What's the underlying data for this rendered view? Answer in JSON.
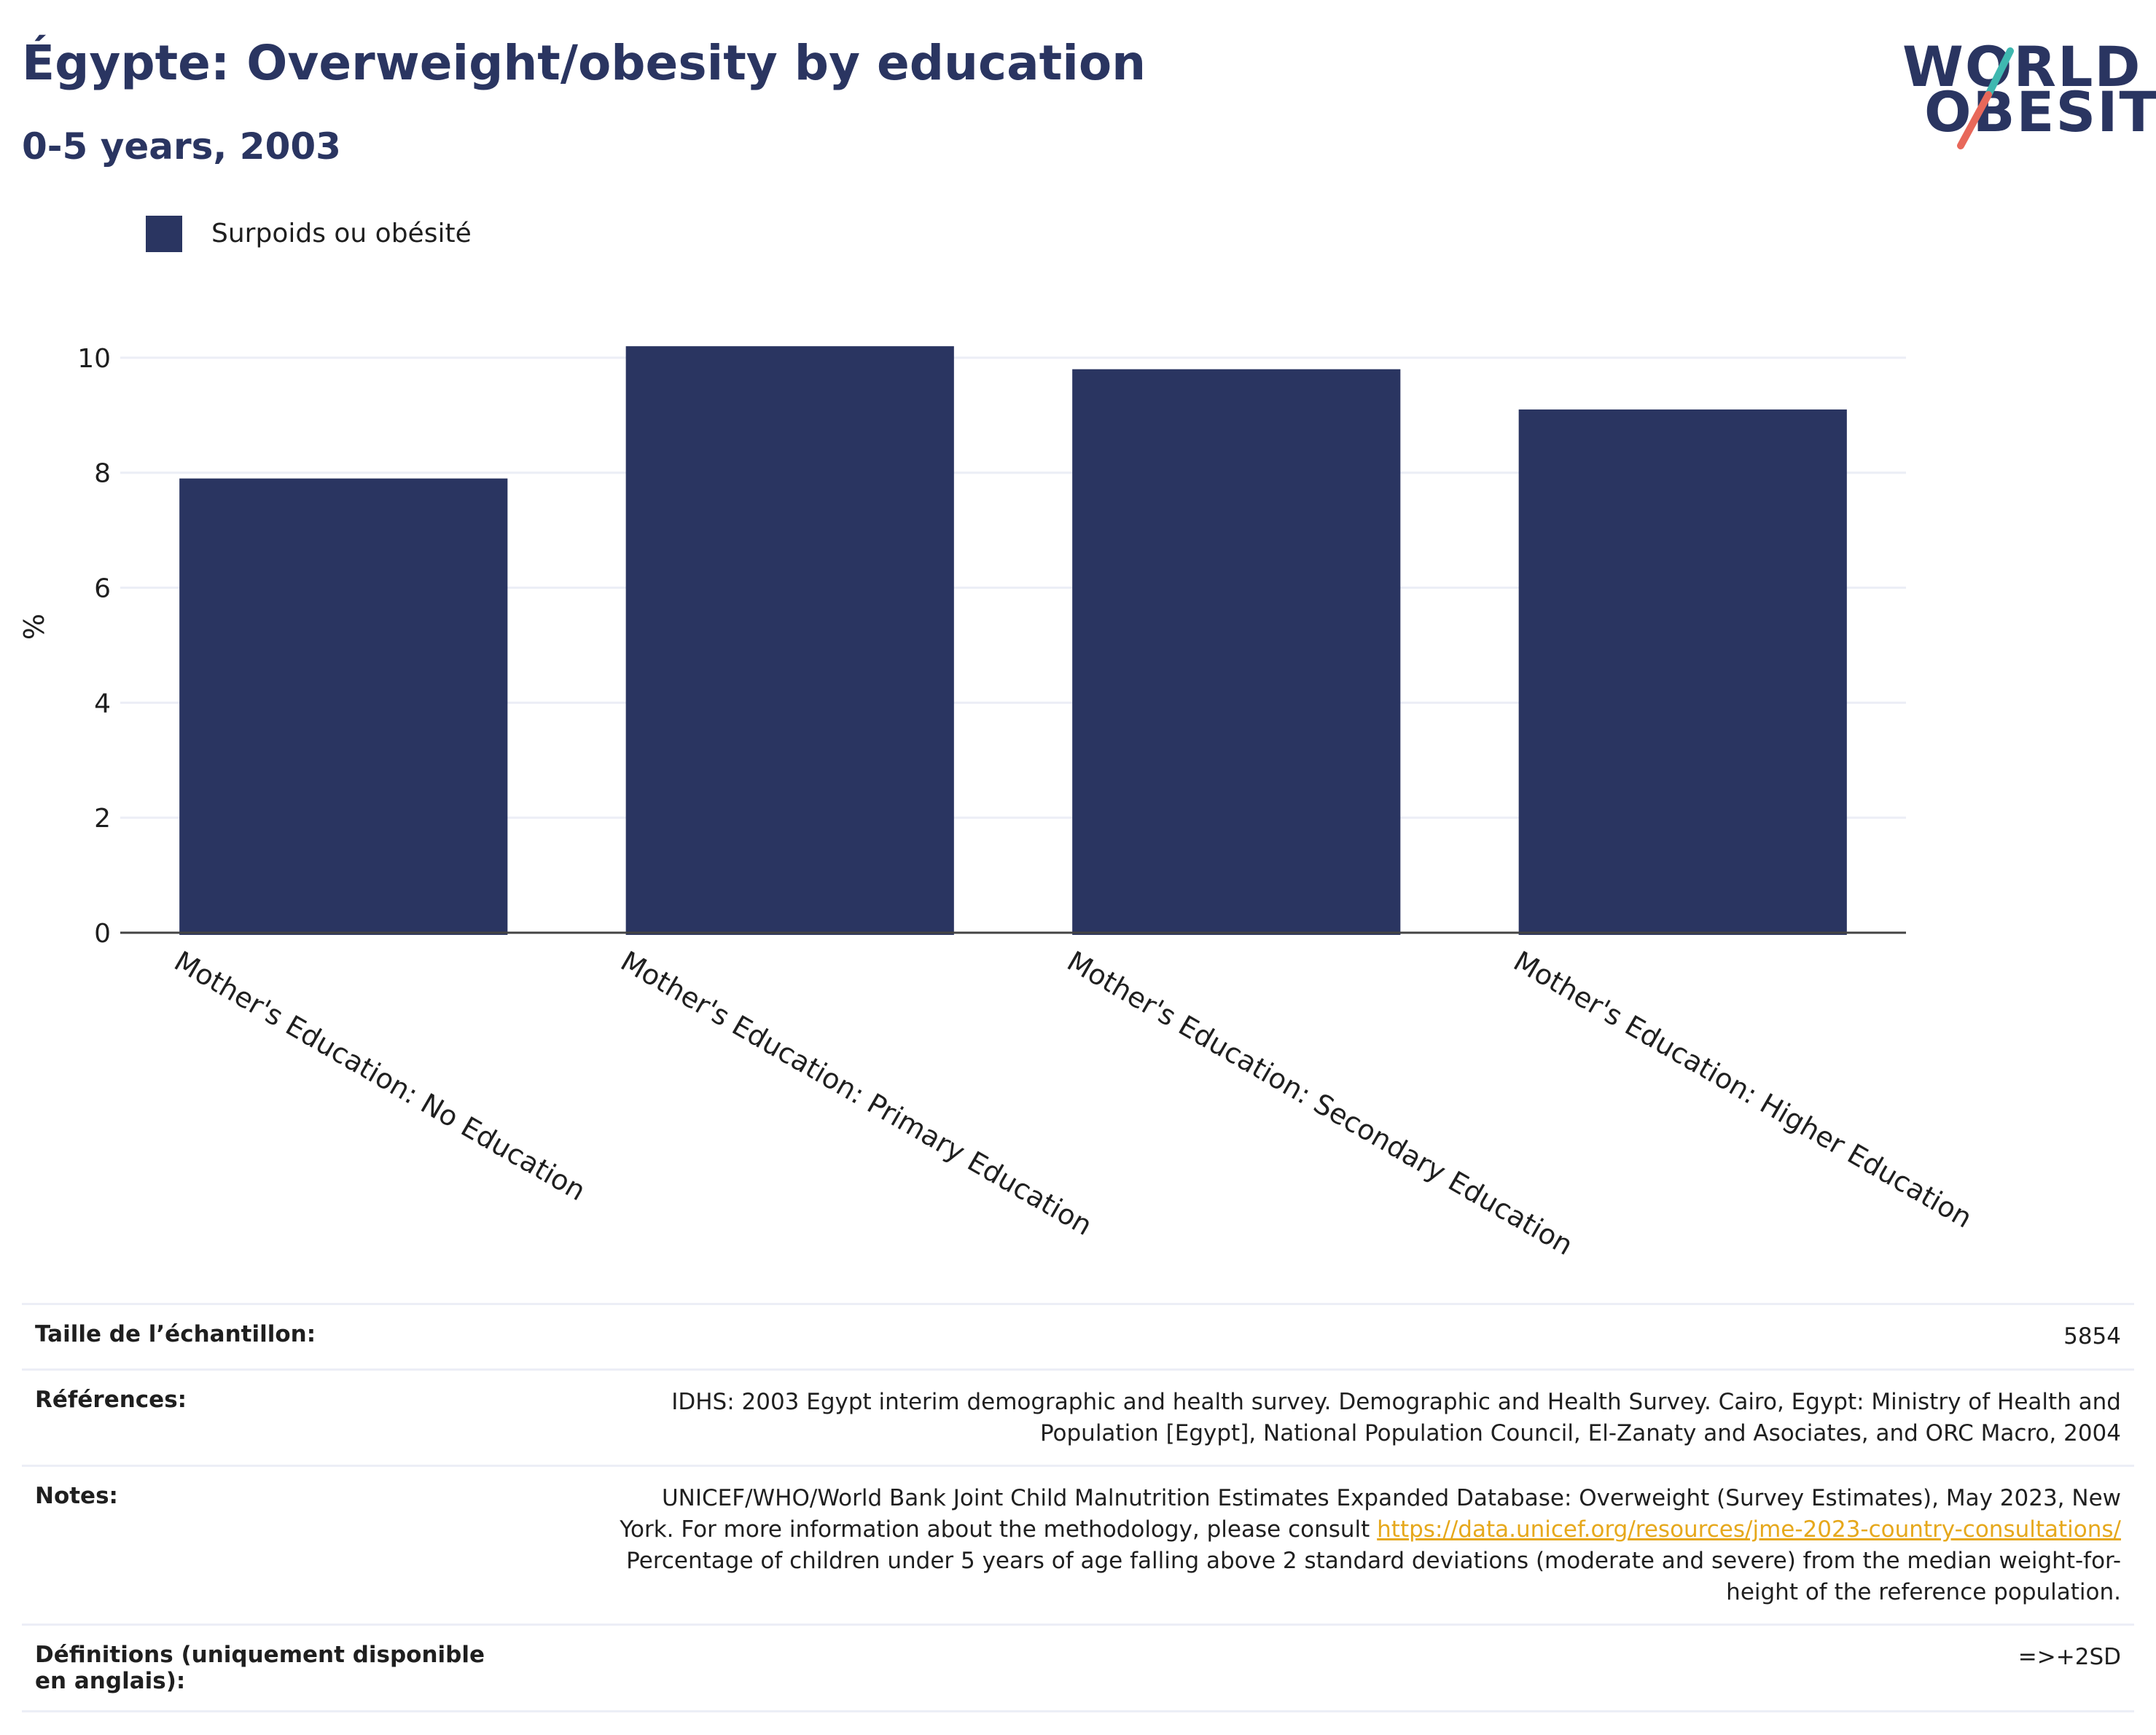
{
  "header": {
    "title": "Égypte: Overweight/obesity by education",
    "subtitle": "0-5 years, 2003"
  },
  "logo": {
    "line1": "WORLD",
    "line2": "OBESITY",
    "colors": {
      "text": "#2a3561",
      "slash_top": "#3fb8b0",
      "slash_bottom": "#e8685a"
    }
  },
  "legend": {
    "label": "Surpoids ou obésité",
    "color": "#2a3561"
  },
  "chart_data": {
    "type": "bar",
    "categories": [
      "Mother's Education: No Education",
      "Mother's Education: Primary Education",
      "Mother's Education: Secondary Education",
      "Mother's Education: Higher Education"
    ],
    "series": [
      {
        "name": "Surpoids ou obésité",
        "values": [
          7.9,
          10.2,
          9.8,
          9.1
        ],
        "color": "#2a3561"
      }
    ],
    "ylabel": "%",
    "ylim": [
      0,
      11
    ],
    "yticks": [
      0,
      2,
      4,
      6,
      8,
      10
    ],
    "grid": true,
    "legend_position": "top-left",
    "category_label_rotation": "slanted"
  },
  "table": {
    "rows": [
      {
        "key": "Taille de l’échantillon:",
        "lines": [
          "5854"
        ]
      },
      {
        "key": "Références:",
        "lines": [
          "IDHS: 2003 Egypt interim demographic and health survey. Demographic and Health Survey. Cairo, Egypt: Ministry of Health and",
          "Population [Egypt], National Population Council, El-Zanaty and Asociates, and ORC Macro, 2004"
        ]
      },
      {
        "key": "Notes:",
        "lines": [
          "UNICEF/WHO/World Bank Joint Child Malnutrition Estimates Expanded Database: Overweight (Survey Estimates), May 2023, New",
          "York. For more information about the methodology, please consult ",
          "Percentage of children under 5 years of age falling above 2 standard deviations (moderate and severe) from the median weight-for-",
          "height of the reference population."
        ],
        "link": "https://data.unicef.org/resources/jme-2023-country-consultations/"
      },
      {
        "key": "Définitions (uniquement disponible en anglais):",
        "lines": [
          "=>+2SD"
        ]
      }
    ]
  }
}
